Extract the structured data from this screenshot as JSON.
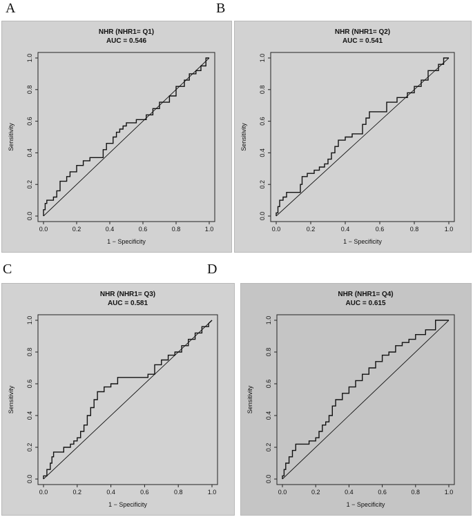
{
  "panel_letters": [
    "A",
    "B",
    "C",
    "D"
  ],
  "chart_data": [
    {
      "type": "line",
      "panel": "A",
      "title": "NHR (NHR1=  Q1)",
      "subtitle": "AUC = 0.546",
      "xlabel": "1 − Specificity",
      "ylabel": "Sensitivity",
      "xlim": [
        0,
        1
      ],
      "ylim": [
        0,
        1
      ],
      "xticks": [
        "0.0",
        "0.2",
        "0.4",
        "0.6",
        "0.8",
        "1.0"
      ],
      "yticks": [
        "0.0",
        "0.2",
        "0.4",
        "0.6",
        "0.8",
        "1.0"
      ],
      "background": "#d2d2d2",
      "grid": false,
      "series": [
        {
          "name": "ROC",
          "x": [
            0,
            0,
            0.01,
            0.01,
            0.02,
            0.02,
            0.06,
            0.06,
            0.08,
            0.08,
            0.1,
            0.1,
            0.14,
            0.14,
            0.16,
            0.16,
            0.2,
            0.2,
            0.24,
            0.24,
            0.28,
            0.28,
            0.3,
            0.3,
            0.36,
            0.36,
            0.38,
            0.38,
            0.42,
            0.42,
            0.44,
            0.44,
            0.46,
            0.46,
            0.48,
            0.48,
            0.5,
            0.5,
            0.56,
            0.56,
            0.62,
            0.62,
            0.66,
            0.66,
            0.7,
            0.7,
            0.76,
            0.76,
            0.8,
            0.8,
            0.85,
            0.85,
            0.88,
            0.88,
            0.92,
            0.92,
            0.95,
            0.95,
            0.98,
            0.98,
            1.0
          ],
          "y": [
            0,
            0.04,
            0.04,
            0.08,
            0.08,
            0.1,
            0.1,
            0.12,
            0.12,
            0.16,
            0.16,
            0.22,
            0.22,
            0.25,
            0.25,
            0.28,
            0.28,
            0.32,
            0.32,
            0.35,
            0.35,
            0.37,
            0.37,
            0.37,
            0.37,
            0.42,
            0.42,
            0.46,
            0.46,
            0.5,
            0.5,
            0.53,
            0.53,
            0.55,
            0.55,
            0.57,
            0.57,
            0.59,
            0.59,
            0.61,
            0.61,
            0.64,
            0.64,
            0.68,
            0.68,
            0.72,
            0.72,
            0.76,
            0.76,
            0.82,
            0.82,
            0.86,
            0.86,
            0.9,
            0.9,
            0.92,
            0.92,
            0.95,
            0.95,
            1.0,
            1.0
          ]
        },
        {
          "name": "diagonal",
          "x": [
            0,
            1
          ],
          "y": [
            0,
            1
          ]
        }
      ]
    },
    {
      "type": "line",
      "panel": "B",
      "title": "NHR (NHR1=  Q2)",
      "subtitle": "AUC = 0.541",
      "xlabel": "1 − Specificity",
      "ylabel": "Sensitivity",
      "xlim": [
        0,
        1
      ],
      "ylim": [
        0,
        1
      ],
      "xticks": [
        "0.0",
        "0.2",
        "0.4",
        "0.6",
        "0.8",
        "1.0"
      ],
      "yticks": [
        "0.0",
        "0.2",
        "0.4",
        "0.6",
        "0.8",
        "1.0"
      ],
      "background": "#d2d2d2",
      "grid": false,
      "series": [
        {
          "name": "ROC",
          "x": [
            0,
            0,
            0.01,
            0.01,
            0.02,
            0.02,
            0.04,
            0.04,
            0.06,
            0.06,
            0.14,
            0.14,
            0.15,
            0.15,
            0.18,
            0.18,
            0.22,
            0.22,
            0.25,
            0.25,
            0.28,
            0.28,
            0.3,
            0.3,
            0.32,
            0.32,
            0.34,
            0.34,
            0.36,
            0.36,
            0.4,
            0.4,
            0.44,
            0.44,
            0.5,
            0.5,
            0.52,
            0.52,
            0.54,
            0.54,
            0.56,
            0.56,
            0.64,
            0.64,
            0.7,
            0.7,
            0.76,
            0.76,
            0.8,
            0.8,
            0.84,
            0.84,
            0.88,
            0.88,
            0.94,
            0.94,
            0.97,
            0.97,
            1.0
          ],
          "y": [
            0,
            0.02,
            0.02,
            0.06,
            0.06,
            0.1,
            0.1,
            0.12,
            0.12,
            0.15,
            0.15,
            0.2,
            0.2,
            0.25,
            0.25,
            0.27,
            0.27,
            0.29,
            0.29,
            0.31,
            0.31,
            0.33,
            0.33,
            0.36,
            0.36,
            0.4,
            0.4,
            0.44,
            0.44,
            0.48,
            0.48,
            0.5,
            0.5,
            0.52,
            0.52,
            0.58,
            0.58,
            0.62,
            0.62,
            0.66,
            0.66,
            0.66,
            0.66,
            0.72,
            0.72,
            0.75,
            0.75,
            0.78,
            0.78,
            0.82,
            0.82,
            0.86,
            0.86,
            0.92,
            0.92,
            0.96,
            0.96,
            1.0,
            1.0
          ]
        },
        {
          "name": "diagonal",
          "x": [
            0,
            1
          ],
          "y": [
            0,
            1
          ]
        }
      ]
    },
    {
      "type": "line",
      "panel": "C",
      "title": "NHR (NHR1=  Q3)",
      "subtitle": "AUC = 0.581",
      "xlabel": "1 − Specificity",
      "ylabel": "Sensitivity",
      "xlim": [
        0,
        1
      ],
      "ylim": [
        0,
        1
      ],
      "xticks": [
        "0.0",
        "0.2",
        "0.4",
        "0.6",
        "0.8",
        "1.0"
      ],
      "yticks": [
        "0.0",
        "0.2",
        "0.4",
        "0.6",
        "0.8",
        "1.0"
      ],
      "background": "#d2d2d2",
      "grid": false,
      "series": [
        {
          "name": "ROC",
          "x": [
            0,
            0,
            0.02,
            0.02,
            0.04,
            0.04,
            0.05,
            0.05,
            0.06,
            0.06,
            0.1,
            0.1,
            0.12,
            0.12,
            0.16,
            0.16,
            0.18,
            0.18,
            0.2,
            0.2,
            0.22,
            0.22,
            0.24,
            0.24,
            0.26,
            0.26,
            0.28,
            0.28,
            0.3,
            0.3,
            0.32,
            0.32,
            0.36,
            0.36,
            0.4,
            0.4,
            0.44,
            0.44,
            0.62,
            0.62,
            0.66,
            0.66,
            0.7,
            0.7,
            0.74,
            0.74,
            0.78,
            0.78,
            0.82,
            0.82,
            0.86,
            0.86,
            0.9,
            0.9,
            0.94,
            0.94,
            0.98,
            0.98,
            1.0
          ],
          "y": [
            0,
            0.02,
            0.02,
            0.06,
            0.06,
            0.1,
            0.1,
            0.14,
            0.14,
            0.17,
            0.17,
            0.17,
            0.17,
            0.2,
            0.2,
            0.22,
            0.22,
            0.24,
            0.24,
            0.26,
            0.26,
            0.3,
            0.3,
            0.34,
            0.34,
            0.4,
            0.4,
            0.45,
            0.45,
            0.5,
            0.5,
            0.55,
            0.55,
            0.58,
            0.58,
            0.6,
            0.6,
            0.64,
            0.64,
            0.66,
            0.66,
            0.72,
            0.72,
            0.75,
            0.75,
            0.78,
            0.78,
            0.8,
            0.8,
            0.84,
            0.84,
            0.88,
            0.88,
            0.92,
            0.92,
            0.96,
            0.96,
            0.98,
            1.0
          ]
        },
        {
          "name": "diagonal",
          "x": [
            0,
            1
          ],
          "y": [
            0,
            1
          ]
        }
      ]
    },
    {
      "type": "line",
      "panel": "D",
      "title": "NHR (NHR1=  Q4)",
      "subtitle": "AUC = 0.615",
      "xlabel": "1 − Specificity",
      "ylabel": "Sensitivity",
      "xlim": [
        0,
        1
      ],
      "ylim": [
        0,
        1
      ],
      "xticks": [
        "0.0",
        "0.2",
        "0.4",
        "0.6",
        "0.8",
        "1.0"
      ],
      "yticks": [
        "0.0",
        "0.2",
        "0.4",
        "0.6",
        "0.8",
        "1.0"
      ],
      "background": "#c5c5c5",
      "grid": false,
      "series": [
        {
          "name": "ROC",
          "x": [
            0,
            0,
            0.01,
            0.01,
            0.02,
            0.02,
            0.04,
            0.04,
            0.06,
            0.06,
            0.08,
            0.08,
            0.1,
            0.1,
            0.16,
            0.16,
            0.2,
            0.2,
            0.22,
            0.22,
            0.24,
            0.24,
            0.26,
            0.26,
            0.28,
            0.28,
            0.3,
            0.3,
            0.32,
            0.32,
            0.36,
            0.36,
            0.4,
            0.4,
            0.44,
            0.44,
            0.48,
            0.48,
            0.52,
            0.52,
            0.56,
            0.56,
            0.6,
            0.6,
            0.64,
            0.64,
            0.68,
            0.68,
            0.72,
            0.72,
            0.76,
            0.76,
            0.8,
            0.8,
            0.86,
            0.86,
            0.92,
            0.92,
            1.0
          ],
          "y": [
            0,
            0.02,
            0.02,
            0.06,
            0.06,
            0.1,
            0.1,
            0.14,
            0.14,
            0.18,
            0.18,
            0.22,
            0.22,
            0.22,
            0.22,
            0.24,
            0.24,
            0.26,
            0.26,
            0.3,
            0.3,
            0.34,
            0.34,
            0.36,
            0.36,
            0.4,
            0.4,
            0.46,
            0.46,
            0.5,
            0.5,
            0.54,
            0.54,
            0.58,
            0.58,
            0.62,
            0.62,
            0.66,
            0.66,
            0.7,
            0.7,
            0.74,
            0.74,
            0.78,
            0.78,
            0.8,
            0.8,
            0.84,
            0.84,
            0.86,
            0.86,
            0.88,
            0.88,
            0.91,
            0.91,
            0.94,
            0.94,
            1.0,
            1.0
          ]
        },
        {
          "name": "diagonal",
          "x": [
            0,
            1
          ],
          "y": [
            0,
            1
          ]
        }
      ]
    }
  ]
}
